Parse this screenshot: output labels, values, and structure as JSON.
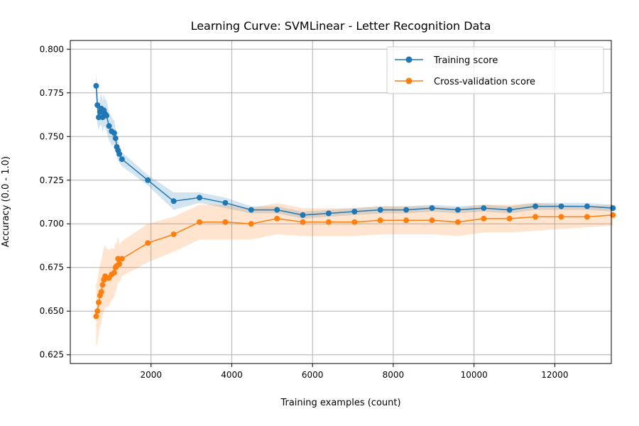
{
  "chart_data": {
    "type": "line",
    "title": "Learning Curve: SVMLinear - Letter Recognition Data",
    "xlabel": "Training examples (count)",
    "ylabel": "Accuracy (0.0 - 1.0)",
    "xlim": [
      0,
      13400
    ],
    "ylim": [
      0.62,
      0.805
    ],
    "xticks": [
      2000,
      4000,
      6000,
      8000,
      10000,
      12000
    ],
    "yticks": [
      0.625,
      0.65,
      0.675,
      0.7,
      0.725,
      0.75,
      0.775,
      0.8
    ],
    "grid": true,
    "legend_position": "top-right",
    "series": [
      {
        "name": "Training score",
        "color": "#1f77b4",
        "x": [
          640,
          672,
          704,
          736,
          768,
          800,
          832,
          864,
          896,
          960,
          1024,
          1088,
          1120,
          1152,
          1184,
          1216,
          1280,
          1920,
          2560,
          3200,
          3840,
          4480,
          5120,
          5760,
          6400,
          7040,
          7680,
          8320,
          8960,
          9600,
          10240,
          10880,
          11520,
          12160,
          12800,
          13440
        ],
        "values": [
          0.779,
          0.768,
          0.761,
          0.764,
          0.766,
          0.761,
          0.765,
          0.763,
          0.762,
          0.756,
          0.753,
          0.752,
          0.749,
          0.744,
          0.742,
          0.74,
          0.737,
          0.725,
          0.713,
          0.715,
          0.712,
          0.708,
          0.708,
          0.705,
          0.706,
          0.707,
          0.708,
          0.708,
          0.709,
          0.708,
          0.709,
          0.708,
          0.71,
          0.71,
          0.71,
          0.709
        ],
        "lower": [
          0.772,
          0.757,
          0.754,
          0.756,
          0.757,
          0.752,
          0.756,
          0.755,
          0.753,
          0.748,
          0.745,
          0.745,
          0.743,
          0.738,
          0.736,
          0.735,
          0.733,
          0.722,
          0.708,
          0.712,
          0.709,
          0.706,
          0.706,
          0.703,
          0.704,
          0.705,
          0.706,
          0.706,
          0.707,
          0.706,
          0.707,
          0.706,
          0.708,
          0.708,
          0.708,
          0.707
        ],
        "upper": [
          0.786,
          0.779,
          0.768,
          0.772,
          0.775,
          0.77,
          0.774,
          0.771,
          0.771,
          0.764,
          0.761,
          0.759,
          0.755,
          0.75,
          0.748,
          0.745,
          0.741,
          0.728,
          0.718,
          0.718,
          0.715,
          0.71,
          0.71,
          0.707,
          0.708,
          0.709,
          0.71,
          0.71,
          0.711,
          0.71,
          0.711,
          0.71,
          0.712,
          0.712,
          0.712,
          0.711
        ]
      },
      {
        "name": "Cross-validation score",
        "color": "#ff7f0e",
        "x": [
          640,
          672,
          704,
          736,
          768,
          800,
          832,
          864,
          896,
          960,
          1024,
          1088,
          1120,
          1152,
          1184,
          1216,
          1280,
          1920,
          2560,
          3200,
          3840,
          4480,
          5120,
          5760,
          6400,
          7040,
          7680,
          8320,
          8960,
          9600,
          10240,
          10880,
          11520,
          12160,
          12800,
          13440
        ],
        "values": [
          0.647,
          0.65,
          0.655,
          0.659,
          0.661,
          0.665,
          0.668,
          0.67,
          0.669,
          0.669,
          0.671,
          0.672,
          0.675,
          0.676,
          0.68,
          0.677,
          0.68,
          0.689,
          0.694,
          0.701,
          0.701,
          0.7,
          0.703,
          0.701,
          0.701,
          0.701,
          0.702,
          0.702,
          0.702,
          0.701,
          0.703,
          0.703,
          0.704,
          0.704,
          0.704,
          0.705
        ],
        "lower": [
          0.629,
          0.632,
          0.637,
          0.641,
          0.643,
          0.647,
          0.65,
          0.652,
          0.652,
          0.653,
          0.656,
          0.658,
          0.661,
          0.663,
          0.667,
          0.666,
          0.67,
          0.678,
          0.684,
          0.691,
          0.691,
          0.691,
          0.694,
          0.693,
          0.693,
          0.693,
          0.694,
          0.694,
          0.694,
          0.693,
          0.695,
          0.695,
          0.696,
          0.697,
          0.698,
          0.699
        ],
        "upper": [
          0.665,
          0.668,
          0.673,
          0.677,
          0.679,
          0.683,
          0.686,
          0.688,
          0.686,
          0.685,
          0.686,
          0.686,
          0.689,
          0.689,
          0.693,
          0.688,
          0.69,
          0.7,
          0.704,
          0.711,
          0.711,
          0.709,
          0.712,
          0.709,
          0.709,
          0.709,
          0.71,
          0.71,
          0.71,
          0.709,
          0.711,
          0.711,
          0.712,
          0.711,
          0.71,
          0.711
        ]
      }
    ]
  }
}
